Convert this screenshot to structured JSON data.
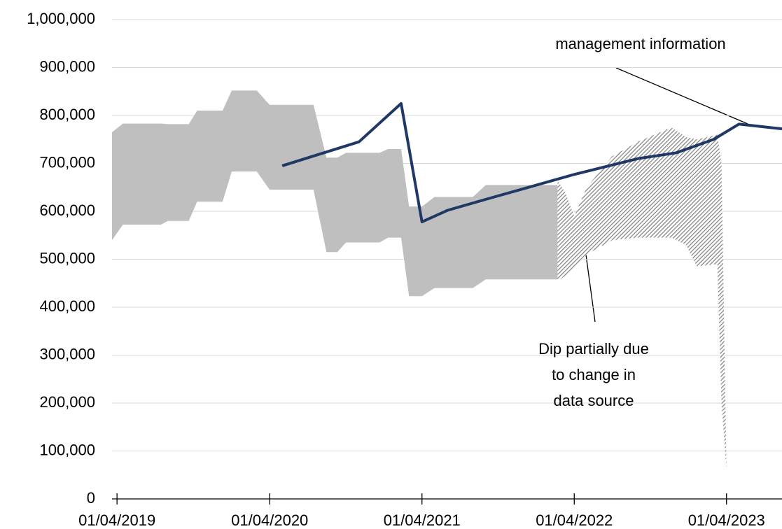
{
  "chart_data": {
    "type": "line",
    "ylim": [
      0,
      1000000
    ],
    "yticks": [
      {
        "value": 0,
        "label": "0"
      },
      {
        "value": 100000,
        "label": "100,000"
      },
      {
        "value": 200000,
        "label": "200,000"
      },
      {
        "value": 300000,
        "label": "300,000"
      },
      {
        "value": 400000,
        "label": "400,000"
      },
      {
        "value": 500000,
        "label": "500,000"
      },
      {
        "value": 600000,
        "label": "600,000"
      },
      {
        "value": 700000,
        "label": "700,000"
      },
      {
        "value": 800000,
        "label": "800,000"
      },
      {
        "value": 900000,
        "label": "900,000"
      },
      {
        "value": 1000000,
        "label": "1,000,000"
      }
    ],
    "xlim": [
      "2019-03-20",
      "2023-08-12"
    ],
    "xticks": [
      {
        "value": "2019-04-01",
        "label": "01/04/2019"
      },
      {
        "value": "2020-04-01",
        "label": "01/04/2020"
      },
      {
        "value": "2021-04-01",
        "label": "01/04/2021"
      },
      {
        "value": "2022-04-01",
        "label": "01/04/2022"
      },
      {
        "value": "2023-04-01",
        "label": "01/04/2023"
      }
    ],
    "grid": true,
    "line": {
      "color": "#1f3864",
      "x": [
        "2020-05-01",
        "2020-11-01",
        "2021-02-10",
        "2021-04-01",
        "2021-06-01",
        "2021-09-01",
        "2022-04-01",
        "2022-09-01",
        "2022-12-01",
        "2023-03-01",
        "2023-05-01",
        "2023-08-12"
      ],
      "values": [
        695000,
        745000,
        825000,
        578000,
        602000,
        625000,
        677000,
        710000,
        722000,
        750000,
        782000,
        772000
      ]
    },
    "band_measured": {
      "color": "#bfbfbf",
      "x": [
        "2019-03-20",
        "2019-04-15",
        "2019-07-15",
        "2019-08-01",
        "2019-09-20",
        "2019-10-10",
        "2019-12-10",
        "2020-01-01",
        "2020-03-01",
        "2020-04-01",
        "2020-07-15",
        "2020-08-15",
        "2020-09-10",
        "2020-10-01",
        "2020-12-20",
        "2021-01-10",
        "2021-02-10",
        "2021-03-01",
        "2021-04-01",
        "2021-05-01",
        "2021-08-01",
        "2021-09-01",
        "2022-02-20"
      ],
      "upper": [
        765000,
        783000,
        783000,
        782000,
        782000,
        810000,
        810000,
        852000,
        852000,
        822000,
        822000,
        712000,
        712000,
        722000,
        722000,
        730000,
        730000,
        610000,
        610000,
        630000,
        630000,
        655000,
        655000
      ],
      "lower": [
        540000,
        572000,
        572000,
        580000,
        580000,
        620000,
        620000,
        683000,
        683000,
        645000,
        645000,
        515000,
        515000,
        535000,
        535000,
        545000,
        545000,
        423000,
        423000,
        440000,
        440000,
        458000,
        458000
      ]
    },
    "band_estimated": {
      "color": "#7f7f7f",
      "hatched": true,
      "x": [
        "2022-02-20",
        "2022-03-10",
        "2022-04-01",
        "2022-05-01",
        "2022-07-01",
        "2022-09-01",
        "2022-11-20",
        "2022-12-25",
        "2023-01-20",
        "2023-03-10",
        "2023-03-20",
        "2023-04-01"
      ],
      "upper": [
        665000,
        640000,
        590000,
        650000,
        715000,
        745000,
        775000,
        755000,
        750000,
        760000,
        700000,
        60000
      ],
      "lower": [
        455000,
        465000,
        480000,
        510000,
        540000,
        545000,
        545000,
        530000,
        485000,
        490000,
        200000,
        60000
      ]
    },
    "annotations": [
      {
        "lines": [
          "management information"
        ]
      },
      {
        "lines": [
          "Dip partially due",
          "to change in",
          "data source"
        ]
      }
    ]
  }
}
